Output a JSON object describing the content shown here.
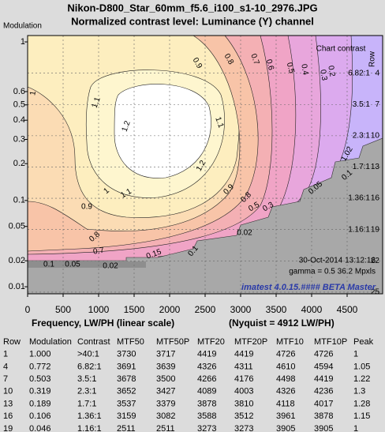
{
  "chart_data": {
    "type": "contour",
    "title": "Nikon-D800_Star_60mm_f5.6_i100_s1-10_2976.JPG",
    "subtitle": "Normalized contrast level:  Luminance (Y) channel",
    "y_label": "Modulation",
    "x_label": "Frequency, LW/PH (linear scale)",
    "x_note": "(Nyquist = 4912 LW/PH)",
    "y2_label": "Row",
    "y2_title": "Chart contrast",
    "xlim": [
      0,
      5000
    ],
    "xticks": [
      0,
      500,
      1000,
      1500,
      2000,
      2500,
      3000,
      3500,
      4000,
      4500
    ],
    "yticks": [
      1,
      0.6,
      0.5,
      0.4,
      0.3,
      0.2,
      0.1,
      0.05,
      0.02,
      0.01
    ],
    "y2lim": [
      0.39,
      25.16
    ],
    "y2ticks": [
      4,
      7,
      10,
      13,
      16,
      19,
      22,
      25
    ],
    "contrast_labels": [
      "6.82:1",
      "3.5:1",
      "2.3:1",
      "1.7:1",
      "1.36:1",
      "1.16:1"
    ],
    "contour_levels": [
      1.2,
      1.1,
      1,
      0.9,
      0.8,
      0.7,
      0.6,
      0.5,
      0.4,
      0.3,
      0.2,
      0.15,
      0.1,
      0.05,
      0.02,
      1.02
    ],
    "grid": true,
    "annotations": [
      "30-Oct-2014 13:12:16",
      "gamma = 0.5   36.2 Mpxls",
      "imatest 4.0.15.#### BETA Master"
    ]
  },
  "table": {
    "header": [
      "Row",
      "Modulation",
      "Contrast",
      "MTF50",
      "MTF50P",
      "MTF20",
      "MTF20P",
      "MTF10",
      "MTF10P",
      "Peak"
    ],
    "rows": [
      [
        "1",
        "1.000",
        ">40:1",
        "3730",
        "3717",
        "4419",
        "4419",
        "4726",
        "4726",
        "1"
      ],
      [
        "4",
        "0.772",
        "6.82:1",
        "3691",
        "3639",
        "4326",
        "4311",
        "4610",
        "4594",
        "1.05"
      ],
      [
        "7",
        "0.503",
        "3.5:1",
        "3678",
        "3500",
        "4266",
        "4176",
        "4498",
        "4419",
        "1.22"
      ],
      [
        "10",
        "0.319",
        "2.3:1",
        "3652",
        "3427",
        "4089",
        "4003",
        "4326",
        "4236",
        "1.3"
      ],
      [
        "13",
        "0.189",
        "1.7:1",
        "3537",
        "3379",
        "3878",
        "3810",
        "4118",
        "4017",
        "1.28"
      ],
      [
        "16",
        "0.106",
        "1.36:1",
        "3159",
        "3082",
        "3588",
        "3512",
        "3961",
        "3878",
        "1.15"
      ],
      [
        "19",
        "0.046",
        "1.16:1",
        "2511",
        "2511",
        "3273",
        "3273",
        "3905",
        "3905",
        "1"
      ]
    ]
  }
}
